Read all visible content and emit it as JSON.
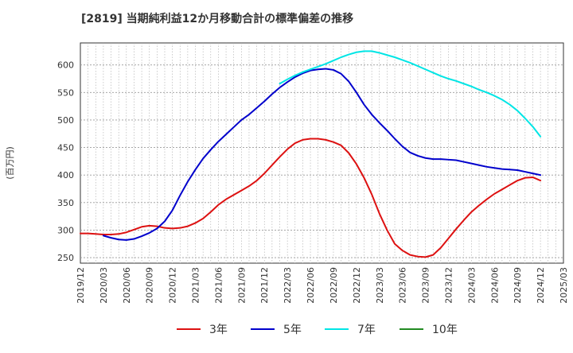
{
  "chart_data": {
    "type": "line",
    "title": "[2819]  当期純利益12か月移動合計の標準偏差の推移",
    "ylabel": "(百万円)",
    "xlabel": "",
    "ylim": [
      240,
      640
    ],
    "yticks": [
      250,
      300,
      350,
      400,
      450,
      500,
      550,
      600
    ],
    "xticks": [
      "2019/12",
      "2020/03",
      "2020/06",
      "2020/09",
      "2020/12",
      "2021/03",
      "2021/06",
      "2021/09",
      "2021/12",
      "2022/03",
      "2022/06",
      "2022/09",
      "2022/12",
      "2023/03",
      "2023/06",
      "2023/09",
      "2023/12",
      "2024/03",
      "2024/06",
      "2024/09",
      "2024/12",
      "2025/03"
    ],
    "grid": true,
    "legend_position": "bottom",
    "series": [
      {
        "name": "3年",
        "color": "#dd1111",
        "x": [
          "2019/12",
          "2020/01",
          "2020/02",
          "2020/03",
          "2020/04",
          "2020/05",
          "2020/06",
          "2020/07",
          "2020/08",
          "2020/09",
          "2020/10",
          "2020/11",
          "2020/12",
          "2021/01",
          "2021/02",
          "2021/03",
          "2021/04",
          "2021/05",
          "2021/06",
          "2021/07",
          "2021/08",
          "2021/09",
          "2021/10",
          "2021/11",
          "2021/12",
          "2022/01",
          "2022/02",
          "2022/03",
          "2022/04",
          "2022/05",
          "2022/06",
          "2022/07",
          "2022/08",
          "2022/09",
          "2022/10",
          "2022/11",
          "2022/12",
          "2023/01",
          "2023/02",
          "2023/03",
          "2023/04",
          "2023/05",
          "2023/06",
          "2023/07",
          "2023/08",
          "2023/09",
          "2023/10",
          "2023/11",
          "2023/12",
          "2024/01",
          "2024/02",
          "2024/03",
          "2024/04",
          "2024/05",
          "2024/06",
          "2024/07",
          "2024/08",
          "2024/09",
          "2024/10",
          "2024/11",
          "2024/12"
        ],
        "values": [
          294,
          294,
          293,
          292,
          292,
          293,
          296,
          301,
          306,
          308,
          307,
          304,
          303,
          304,
          307,
          313,
          321,
          333,
          346,
          356,
          364,
          372,
          380,
          390,
          403,
          418,
          433,
          447,
          458,
          464,
          466,
          466,
          464,
          460,
          454,
          440,
          420,
          395,
          365,
          330,
          300,
          275,
          263,
          255,
          252,
          251,
          255,
          268,
          285,
          302,
          318,
          333,
          345,
          356,
          366,
          374,
          382,
          390,
          395,
          396,
          390
        ]
      },
      {
        "name": "5年",
        "color": "#0000cc",
        "x": [
          "2020/03",
          "2020/04",
          "2020/05",
          "2020/06",
          "2020/07",
          "2020/08",
          "2020/09",
          "2020/10",
          "2020/11",
          "2020/12",
          "2021/01",
          "2021/02",
          "2021/03",
          "2021/04",
          "2021/05",
          "2021/06",
          "2021/07",
          "2021/08",
          "2021/09",
          "2021/10",
          "2021/11",
          "2021/12",
          "2022/01",
          "2022/02",
          "2022/03",
          "2022/04",
          "2022/05",
          "2022/06",
          "2022/07",
          "2022/08",
          "2022/09",
          "2022/10",
          "2022/11",
          "2022/12",
          "2023/01",
          "2023/02",
          "2023/03",
          "2023/04",
          "2023/05",
          "2023/06",
          "2023/07",
          "2023/08",
          "2023/09",
          "2023/10",
          "2023/11",
          "2023/12",
          "2024/01",
          "2024/02",
          "2024/03",
          "2024/04",
          "2024/05",
          "2024/06",
          "2024/07",
          "2024/08",
          "2024/09",
          "2024/10",
          "2024/11",
          "2024/12"
        ],
        "values": [
          290,
          286,
          283,
          282,
          284,
          289,
          295,
          303,
          316,
          336,
          363,
          388,
          410,
          430,
          446,
          461,
          474,
          487,
          500,
          510,
          522,
          534,
          547,
          559,
          569,
          578,
          585,
          590,
          592,
          593,
          591,
          584,
          570,
          550,
          528,
          510,
          495,
          481,
          466,
          452,
          441,
          435,
          431,
          429,
          429,
          428,
          427,
          424,
          421,
          418,
          415,
          413,
          411,
          410,
          409,
          406,
          403,
          400
        ]
      },
      {
        "name": "7年",
        "color": "#00e5e5",
        "x": [
          "2022/02",
          "2022/03",
          "2022/04",
          "2022/05",
          "2022/06",
          "2022/07",
          "2022/08",
          "2022/09",
          "2022/10",
          "2022/11",
          "2022/12",
          "2023/01",
          "2023/02",
          "2023/03",
          "2023/04",
          "2023/05",
          "2023/06",
          "2023/07",
          "2023/08",
          "2023/09",
          "2023/10",
          "2023/11",
          "2023/12",
          "2024/01",
          "2024/02",
          "2024/03",
          "2024/04",
          "2024/05",
          "2024/06",
          "2024/07",
          "2024/08",
          "2024/09",
          "2024/10",
          "2024/11",
          "2024/12"
        ],
        "values": [
          566,
          574,
          581,
          587,
          592,
          597,
          602,
          608,
          614,
          619,
          623,
          625,
          625,
          622,
          618,
          614,
          609,
          604,
          598,
          592,
          586,
          580,
          575,
          571,
          566,
          561,
          555,
          550,
          544,
          537,
          528,
          517,
          503,
          488,
          470
        ]
      },
      {
        "name": "10年",
        "color": "#228b22",
        "x": [],
        "values": []
      }
    ]
  }
}
